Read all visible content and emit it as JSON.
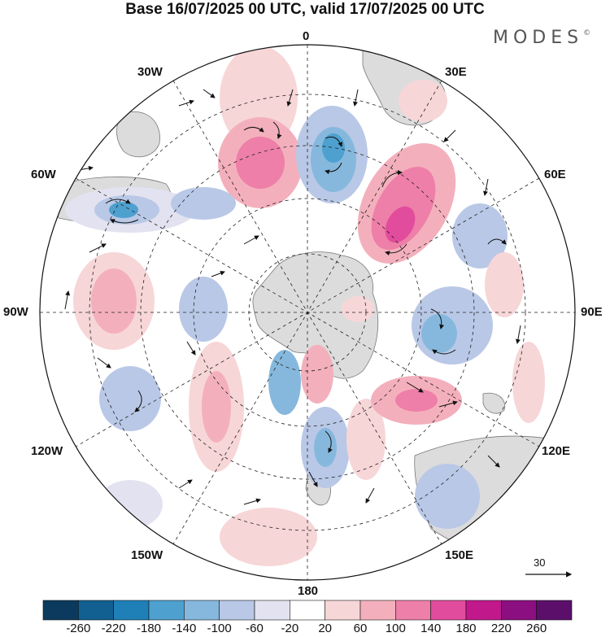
{
  "title": "Base 16/07/2025 00 UTC, valid 17/07/2025 00 UTC",
  "brand": "MODES",
  "brand_mark": "©",
  "map": {
    "projection": "south polar stereographic",
    "longitude_labels": [
      "0",
      "30E",
      "60E",
      "90E",
      "120E",
      "150E",
      "180",
      "150W",
      "120W",
      "90W",
      "60W",
      "30W"
    ],
    "reference_vector_label": "30"
  },
  "colorbar": {
    "tick_labels": [
      "-260",
      "-220",
      "-180",
      "-140",
      "-100",
      "-60",
      "-20",
      "20",
      "60",
      "100",
      "140",
      "180",
      "220",
      "260"
    ],
    "colors": [
      "#0b3a5e",
      "#125f91",
      "#1f80b8",
      "#4ea0cf",
      "#86b8dd",
      "#b9c8e6",
      "#e2e2f1",
      "#ffffff",
      "#f7d6d8",
      "#f3b0bc",
      "#ee7fa8",
      "#e24c9c",
      "#c1188c",
      "#8b0f80",
      "#5b0f6b"
    ]
  },
  "colors": {
    "land": "#dcdcdc",
    "land_edge": "#777777",
    "grid": "#222222",
    "vector": "#111111"
  }
}
